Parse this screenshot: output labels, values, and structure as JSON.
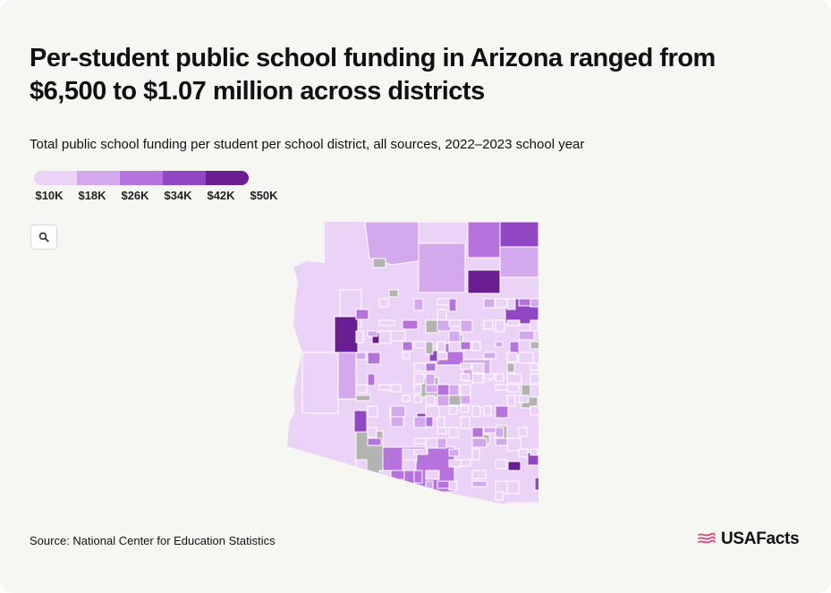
{
  "title": "Per-student public school funding in Arizona ranged from $6,500 to $1.07 million across districts",
  "subtitle": "Total public school funding per student per school district, all sources, 2022–2023 school year",
  "legend": {
    "labels": [
      "$10K",
      "$18K",
      "$26K",
      "$34K",
      "$42K",
      "$50K"
    ],
    "colors": [
      "#ebd3f7",
      "#d4a8ec",
      "#b673dd",
      "#9146c4",
      "#6a1e91"
    ]
  },
  "zoom_button": {
    "icon": "search-icon"
  },
  "map": {
    "state": "Arizona",
    "no_data_color": "#b3b3b1",
    "border_color": "#ffffff"
  },
  "source": "Source: National Center for Education Statistics",
  "brand": {
    "name": "USAFacts",
    "logo_icon": "flag-icon",
    "logo_color": "#e0427a"
  }
}
